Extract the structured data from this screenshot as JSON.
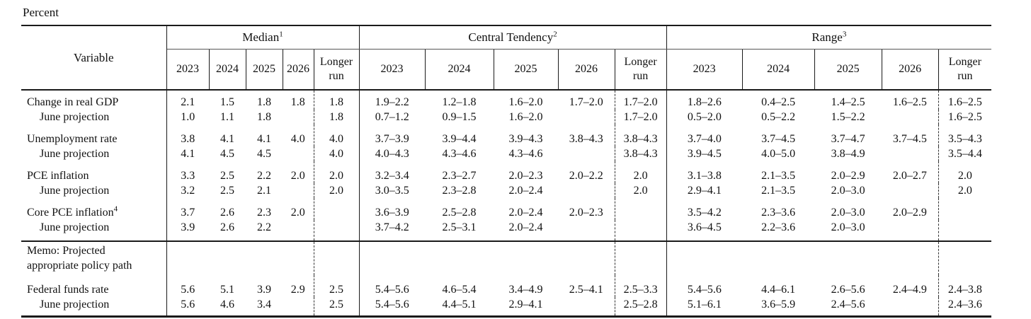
{
  "page": {
    "unit_label": "Percent"
  },
  "table": {
    "variable_header": "Variable",
    "groups": [
      {
        "label": "Median",
        "sup": "1"
      },
      {
        "label": "Central Tendency",
        "sup": "2"
      },
      {
        "label": "Range",
        "sup": "3"
      }
    ],
    "year_headers": [
      "2023",
      "2024",
      "2025",
      "2026",
      "Longer run"
    ],
    "rows": [
      {
        "variable": "Change in real GDP",
        "variable_sup": "",
        "indent": false,
        "group_start": true,
        "memo": false,
        "section_end": false,
        "median": [
          "2.1",
          "1.5",
          "1.8",
          "1.8",
          "1.8"
        ],
        "central_tendency": [
          "1.9–2.2",
          "1.2–1.8",
          "1.6–2.0",
          "1.7–2.0",
          "1.7–2.0"
        ],
        "range": [
          "1.8–2.6",
          "0.4–2.5",
          "1.4–2.5",
          "1.6–2.5",
          "1.6–2.5"
        ]
      },
      {
        "variable": "June projection",
        "variable_sup": "",
        "indent": true,
        "group_start": false,
        "memo": false,
        "section_end": false,
        "median": [
          "1.0",
          "1.1",
          "1.8",
          "",
          "1.8"
        ],
        "central_tendency": [
          "0.7–1.2",
          "0.9–1.5",
          "1.6–2.0",
          "",
          "1.7–2.0"
        ],
        "range": [
          "0.5–2.0",
          "0.5–2.2",
          "1.5–2.2",
          "",
          "1.6–2.5"
        ]
      },
      {
        "variable": "Unemployment rate",
        "variable_sup": "",
        "indent": false,
        "group_start": true,
        "memo": false,
        "section_end": false,
        "median": [
          "3.8",
          "4.1",
          "4.1",
          "4.0",
          "4.0"
        ],
        "central_tendency": [
          "3.7–3.9",
          "3.9–4.4",
          "3.9–4.3",
          "3.8–4.3",
          "3.8–4.3"
        ],
        "range": [
          "3.7–4.0",
          "3.7–4.5",
          "3.7–4.7",
          "3.7–4.5",
          "3.5–4.3"
        ]
      },
      {
        "variable": "June projection",
        "variable_sup": "",
        "indent": true,
        "group_start": false,
        "memo": false,
        "section_end": false,
        "median": [
          "4.1",
          "4.5",
          "4.5",
          "",
          "4.0"
        ],
        "central_tendency": [
          "4.0–4.3",
          "4.3–4.6",
          "4.3–4.6",
          "",
          "3.8–4.3"
        ],
        "range": [
          "3.9–4.5",
          "4.0–5.0",
          "3.8–4.9",
          "",
          "3.5–4.4"
        ]
      },
      {
        "variable": "PCE inflation",
        "variable_sup": "",
        "indent": false,
        "group_start": true,
        "memo": false,
        "section_end": false,
        "median": [
          "3.3",
          "2.5",
          "2.2",
          "2.0",
          "2.0"
        ],
        "central_tendency": [
          "3.2–3.4",
          "2.3–2.7",
          "2.0–2.3",
          "2.0–2.2",
          "2.0"
        ],
        "range": [
          "3.1–3.8",
          "2.1–3.5",
          "2.0–2.9",
          "2.0–2.7",
          "2.0"
        ]
      },
      {
        "variable": "June projection",
        "variable_sup": "",
        "indent": true,
        "group_start": false,
        "memo": false,
        "section_end": false,
        "median": [
          "3.2",
          "2.5",
          "2.1",
          "",
          "2.0"
        ],
        "central_tendency": [
          "3.0–3.5",
          "2.3–2.8",
          "2.0–2.4",
          "",
          "2.0"
        ],
        "range": [
          "2.9–4.1",
          "2.1–3.5",
          "2.0–3.0",
          "",
          "2.0"
        ]
      },
      {
        "variable": "Core PCE inflation",
        "variable_sup": "4",
        "indent": false,
        "group_start": true,
        "memo": false,
        "section_end": false,
        "median": [
          "3.7",
          "2.6",
          "2.3",
          "2.0",
          ""
        ],
        "central_tendency": [
          "3.6–3.9",
          "2.5–2.8",
          "2.0–2.4",
          "2.0–2.3",
          ""
        ],
        "range": [
          "3.5–4.2",
          "2.3–3.6",
          "2.0–3.0",
          "2.0–2.9",
          ""
        ]
      },
      {
        "variable": "June projection",
        "variable_sup": "",
        "indent": true,
        "group_start": false,
        "memo": false,
        "section_end": true,
        "median": [
          "3.9",
          "2.6",
          "2.2",
          "",
          ""
        ],
        "central_tendency": [
          "3.7–4.2",
          "2.5–3.1",
          "2.0–2.4",
          "",
          ""
        ],
        "range": [
          "3.6–4.5",
          "2.2–3.6",
          "2.0–3.0",
          "",
          ""
        ]
      },
      {
        "variable": "Memo: Projected\nappropriate policy path",
        "variable_sup": "",
        "indent": false,
        "group_start": false,
        "memo": true,
        "section_end": false,
        "median": [
          "",
          "",
          "",
          "",
          ""
        ],
        "central_tendency": [
          "",
          "",
          "",
          "",
          ""
        ],
        "range": [
          "",
          "",
          "",
          "",
          ""
        ]
      },
      {
        "variable": "Federal funds rate",
        "variable_sup": "",
        "indent": false,
        "group_start": true,
        "memo": false,
        "section_end": false,
        "median": [
          "5.6",
          "5.1",
          "3.9",
          "2.9",
          "2.5"
        ],
        "central_tendency": [
          "5.4–5.6",
          "4.6–5.4",
          "3.4–4.9",
          "2.5–4.1",
          "2.5–3.3"
        ],
        "range": [
          "5.4–5.6",
          "4.4–6.1",
          "2.6–5.6",
          "2.4–4.9",
          "2.4–3.8"
        ]
      },
      {
        "variable": "June projection",
        "variable_sup": "",
        "indent": true,
        "group_start": false,
        "memo": false,
        "section_end": false,
        "median": [
          "5.6",
          "4.6",
          "3.4",
          "",
          "2.5"
        ],
        "central_tendency": [
          "5.4–5.6",
          "4.4–5.1",
          "2.9–4.1",
          "",
          "2.5–2.8"
        ],
        "range": [
          "5.1–6.1",
          "3.6–5.9",
          "2.4–5.6",
          "",
          "2.4–3.6"
        ]
      }
    ]
  }
}
